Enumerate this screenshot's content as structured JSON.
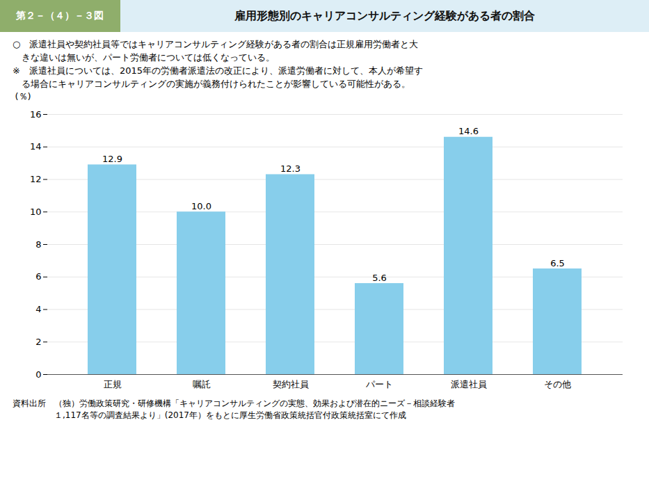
{
  "chart_data": {
    "type": "bar",
    "subtitle": "第２－（４）－３図",
    "title": "雇用形態別のキャリアコンサルティング経験がある者の割合",
    "annotations": [
      "○　派遣社員や契約社員等ではキャリアコンサルティング経験がある者の割合は正規雇用労働者と大",
      "　きな違いは無いが、パート労働者については低くなっている。",
      "※　派遣社員については、2015年の労働者派遣法の改正により、派遣労働者に対して、本人が希望す",
      "　る場合にキャリアコンサルティングの実施が義務付けられたことが影響している可能性がある。"
    ],
    "caption": [
      "資料出所　（独）労働政策研究・研修機構「キャリアコンサルティングの実態、効果および潜在的ニーズ－相談経験者",
      "　　　　　１,117名等の調査結果より」(2017年）をもとに厚生労働省政策統括官付政策統括室にて作成"
    ],
    "categories": [
      "正規",
      "嘱託",
      "契約社員",
      "パート",
      "派遣社員",
      "その他"
    ],
    "values": [
      12.9,
      10.0,
      12.3,
      5.6,
      14.6,
      6.5
    ],
    "value_labels": [
      "12.9",
      "10.0",
      "12.3",
      "5.6",
      "14.6",
      "6.5"
    ],
    "data_labels": true,
    "color": "#87CEEB",
    "y_label": "(％)",
    "ylim": [
      0,
      16
    ],
    "yticks": [
      0,
      2,
      4,
      6,
      8,
      10,
      12,
      14,
      16
    ],
    "grid": true
  }
}
